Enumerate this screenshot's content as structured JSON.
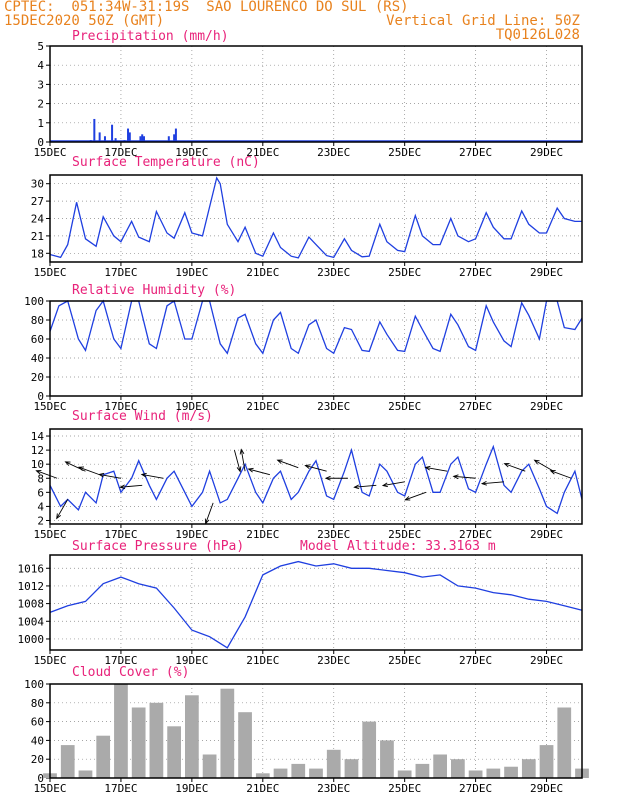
{
  "header": {
    "left_line1": "CPTEC:  051:34W-31:19S  SAO LOURENCO DO SUL (RS)",
    "left_line2": "15DEC2020 50Z (GMT)",
    "right_line2": "Vertical Grid Line: 50Z",
    "right_line3": "TQ0126L028"
  },
  "colors": {
    "header": "#e8821e",
    "title": "#e8227a",
    "line": "#1f3fe0",
    "cloud": "#aaaaaa",
    "arrow": "#000000"
  },
  "x_axis": {
    "tick_labels": [
      "15DEC",
      "17DEC",
      "19DEC",
      "21DEC",
      "23DEC",
      "25DEC",
      "27DEC",
      "29DEC"
    ],
    "tick_days": [
      0,
      2,
      4,
      6,
      8,
      10,
      12,
      14
    ],
    "range_days": [
      0,
      15
    ]
  },
  "chart_data": [
    {
      "type": "bar",
      "title": "Precipitation (mm/h)",
      "ylim": [
        0,
        5
      ],
      "yticks": [
        0,
        1,
        2,
        3,
        4,
        5
      ],
      "x": [
        1.15,
        1.25,
        1.4,
        1.55,
        1.75,
        1.85,
        2.1,
        2.2,
        2.25,
        2.55,
        2.6,
        2.65,
        3.35,
        3.5,
        3.55
      ],
      "values": [
        0.1,
        1.2,
        0.5,
        0.3,
        0.9,
        0.2,
        0.1,
        0.7,
        0.5,
        0.3,
        0.4,
        0.3,
        0.3,
        0.4,
        0.7
      ]
    },
    {
      "type": "line",
      "title": "Surface Temperature (nC)",
      "ylim": [
        16.5,
        31.5
      ],
      "yticks": [
        18,
        21,
        24,
        27,
        30
      ],
      "x": [
        0,
        0.3,
        0.5,
        0.75,
        1,
        1.3,
        1.5,
        1.8,
        2,
        2.3,
        2.5,
        2.8,
        3,
        3.3,
        3.5,
        3.8,
        4,
        4.3,
        4.5,
        4.7,
        4.8,
        5,
        5.3,
        5.5,
        5.8,
        6,
        6.3,
        6.5,
        6.8,
        7,
        7.3,
        7.5,
        7.8,
        8,
        8.3,
        8.5,
        8.8,
        9,
        9.3,
        9.5,
        9.8,
        10,
        10.3,
        10.5,
        10.8,
        11,
        11.3,
        11.5,
        11.8,
        12,
        12.3,
        12.5,
        12.8,
        13,
        13.3,
        13.5,
        13.8,
        14,
        14.3,
        14.5,
        14.8,
        15
      ],
      "values": [
        17.8,
        17.3,
        19.5,
        26.8,
        20.5,
        19.2,
        24.3,
        21,
        20,
        23.5,
        20.8,
        20,
        25.2,
        21.5,
        20.6,
        25,
        21.5,
        21,
        26,
        31,
        30,
        23,
        20,
        22.5,
        18,
        17.5,
        21.5,
        19,
        17.5,
        17.2,
        20.8,
        19.5,
        17.6,
        17.3,
        20.5,
        18.5,
        17.4,
        17.5,
        23,
        20,
        18.5,
        18.3,
        24.5,
        21,
        19.5,
        19.5,
        24,
        21,
        20,
        20.5,
        25,
        22.5,
        20.5,
        20.5,
        25.3,
        23,
        21.5,
        21.5,
        25.8,
        24,
        23.5,
        23.5
      ]
    },
    {
      "type": "line",
      "title": "Relative Humidity (%)",
      "ylim": [
        0,
        100
      ],
      "yticks": [
        0,
        20,
        40,
        60,
        80,
        100
      ],
      "x": [
        0,
        0.25,
        0.5,
        0.8,
        1,
        1.3,
        1.5,
        1.8,
        2,
        2.3,
        2.5,
        2.8,
        3,
        3.3,
        3.5,
        3.8,
        4,
        4.3,
        4.5,
        4.8,
        5,
        5.3,
        5.5,
        5.8,
        6,
        6.3,
        6.5,
        6.8,
        7,
        7.3,
        7.5,
        7.8,
        8,
        8.3,
        8.5,
        8.8,
        9,
        9.3,
        9.5,
        9.8,
        10,
        10.3,
        10.5,
        10.8,
        11,
        11.3,
        11.5,
        11.8,
        12,
        12.3,
        12.5,
        12.8,
        13,
        13.3,
        13.5,
        13.8,
        14,
        14.3,
        14.5,
        14.8,
        15
      ],
      "values": [
        68,
        95,
        100,
        60,
        48,
        90,
        100,
        60,
        50,
        100,
        100,
        55,
        50,
        95,
        100,
        60,
        60,
        100,
        100,
        55,
        45,
        82,
        86,
        55,
        45,
        80,
        88,
        50,
        45,
        75,
        80,
        50,
        45,
        72,
        70,
        48,
        47,
        78,
        65,
        48,
        47,
        84,
        70,
        50,
        47,
        86,
        75,
        52,
        48,
        95,
        78,
        58,
        52,
        98,
        85,
        60,
        100,
        100,
        72,
        70,
        82
      ]
    },
    {
      "type": "line",
      "title": "Surface Wind (m/s)",
      "ylim": [
        1.5,
        15
      ],
      "yticks": [
        2,
        4,
        6,
        8,
        10,
        12,
        14
      ],
      "x": [
        0,
        0.3,
        0.5,
        0.8,
        1,
        1.3,
        1.5,
        1.8,
        2,
        2.3,
        2.5,
        2.8,
        3,
        3.3,
        3.5,
        3.8,
        4,
        4.3,
        4.5,
        4.8,
        5,
        5.3,
        5.5,
        5.8,
        6,
        6.3,
        6.5,
        6.8,
        7,
        7.3,
        7.5,
        7.8,
        8,
        8.3,
        8.5,
        8.8,
        9,
        9.3,
        9.5,
        9.8,
        10,
        10.3,
        10.5,
        10.8,
        11,
        11.3,
        11.5,
        11.8,
        12,
        12.3,
        12.5,
        12.8,
        13,
        13.3,
        13.5,
        13.8,
        14,
        14.3,
        14.5,
        14.8,
        15
      ],
      "values": [
        7,
        4,
        5,
        3.5,
        6,
        4.5,
        8.5,
        9,
        6,
        8,
        10.5,
        7,
        5,
        8,
        9,
        6,
        4,
        6,
        9,
        4.5,
        5,
        8,
        10,
        6,
        4.5,
        8,
        9,
        5,
        6,
        9,
        10.5,
        5.5,
        5,
        9,
        12,
        6,
        5.5,
        10,
        9,
        6,
        5.5,
        10,
        11,
        6,
        6,
        10,
        11,
        6.5,
        6,
        10,
        12.5,
        7,
        6,
        9,
        10,
        6.5,
        4,
        3,
        6,
        9,
        5
      ]
    },
    {
      "type": "line",
      "title": "Surface Pressure (hPa)",
      "annotation": "Model Altitude: 33.3163 m",
      "ylim": [
        997.5,
        1019
      ],
      "yticks": [
        1000,
        1004,
        1008,
        1012,
        1016
      ],
      "x": [
        0,
        0.5,
        1,
        1.5,
        2,
        2.5,
        3,
        3.5,
        4,
        4.5,
        5,
        5.5,
        6,
        6.5,
        7,
        7.5,
        8,
        8.5,
        9,
        9.5,
        10,
        10.5,
        11,
        11.5,
        12,
        12.5,
        13,
        13.5,
        14,
        14.5,
        15
      ],
      "values": [
        1006,
        1007.5,
        1008.5,
        1012.5,
        1014,
        1012.5,
        1011.5,
        1007,
        1002,
        1000.5,
        998,
        1005,
        1014.5,
        1016.5,
        1017.5,
        1016.5,
        1017,
        1016,
        1016,
        1015.5,
        1015,
        1014,
        1014.5,
        1012,
        1011.5,
        1010.5,
        1010,
        1009,
        1008.5,
        1007.5,
        1006.5
      ]
    },
    {
      "type": "bar",
      "title": "Cloud Cover (%)",
      "ylim": [
        0,
        100
      ],
      "yticks": [
        0,
        20,
        40,
        60,
        80,
        100
      ],
      "x": [
        0,
        0.5,
        1,
        1.5,
        2,
        2.5,
        3,
        3.5,
        4,
        4.5,
        5,
        5.5,
        6,
        6.5,
        7,
        7.5,
        8,
        8.5,
        9,
        9.5,
        10,
        10.5,
        11,
        11.5,
        12,
        12.5,
        13,
        13.5,
        14,
        14.5,
        15
      ],
      "values": [
        5,
        35,
        8,
        45,
        100,
        75,
        80,
        55,
        88,
        25,
        95,
        70,
        5,
        10,
        15,
        10,
        30,
        20,
        60,
        40,
        8,
        15,
        25,
        20,
        8,
        10,
        12,
        20,
        35,
        75,
        10
      ]
    }
  ],
  "wind_arrows": [
    {
      "day": 0.2,
      "speed": 8,
      "angle": 160
    },
    {
      "day": 0.5,
      "speed": 5,
      "angle": 240
    },
    {
      "day": 1.0,
      "speed": 9,
      "angle": 155
    },
    {
      "day": 1.4,
      "speed": 8.5,
      "angle": 160
    },
    {
      "day": 2.0,
      "speed": 8,
      "angle": 170
    },
    {
      "day": 2.6,
      "speed": 7,
      "angle": 185
    },
    {
      "day": 3.2,
      "speed": 8,
      "angle": 170
    },
    {
      "day": 4.6,
      "speed": 4.5,
      "angle": 250
    },
    {
      "day": 5.2,
      "speed": 12,
      "angle": 285
    },
    {
      "day": 5.5,
      "speed": 9,
      "angle": 100
    },
    {
      "day": 6.2,
      "speed": 8.5,
      "angle": 165
    },
    {
      "day": 7.0,
      "speed": 9.5,
      "angle": 160
    },
    {
      "day": 7.8,
      "speed": 9,
      "angle": 165
    },
    {
      "day": 8.4,
      "speed": 8,
      "angle": 180
    },
    {
      "day": 9.2,
      "speed": 7,
      "angle": 185
    },
    {
      "day": 10.0,
      "speed": 7.5,
      "angle": 190
    },
    {
      "day": 10.6,
      "speed": 6,
      "angle": 200
    },
    {
      "day": 11.2,
      "speed": 9,
      "angle": 170
    },
    {
      "day": 12.0,
      "speed": 8,
      "angle": 175
    },
    {
      "day": 12.8,
      "speed": 7.5,
      "angle": 185
    },
    {
      "day": 13.4,
      "speed": 9,
      "angle": 160
    },
    {
      "day": 14.2,
      "speed": 9,
      "angle": 150
    },
    {
      "day": 14.7,
      "speed": 8,
      "angle": 160
    }
  ]
}
